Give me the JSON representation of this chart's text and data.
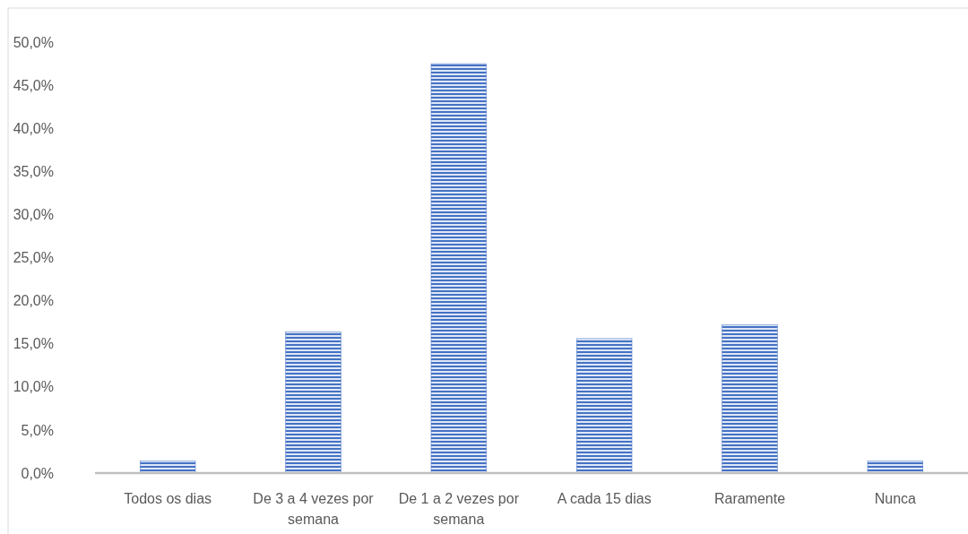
{
  "chart_data": {
    "type": "bar",
    "categories": [
      "Todos os dias",
      "De 3 a 4 vezes por semana",
      "De 1 a 2 vezes por semana",
      "A cada 15 dias",
      "Raramente",
      "Nunca"
    ],
    "values": [
      1.4,
      16.4,
      47.5,
      15.6,
      17.2,
      1.4
    ],
    "color": "#4472c4",
    "ylim": [
      0,
      50
    ],
    "yticks": [
      {
        "value": 0,
        "label": "0,0%"
      },
      {
        "value": 5,
        "label": "5,0%"
      },
      {
        "value": 10,
        "label": "10,0%"
      },
      {
        "value": 15,
        "label": "15,0%"
      },
      {
        "value": 20,
        "label": "20,0%"
      },
      {
        "value": 25,
        "label": "25,0%"
      },
      {
        "value": 30,
        "label": "30,0%"
      },
      {
        "value": 35,
        "label": "35,0%"
      },
      {
        "value": 40,
        "label": "40,0%"
      },
      {
        "value": 45,
        "label": "45,0%"
      },
      {
        "value": 50,
        "label": "50,0%"
      }
    ],
    "grid": false
  }
}
